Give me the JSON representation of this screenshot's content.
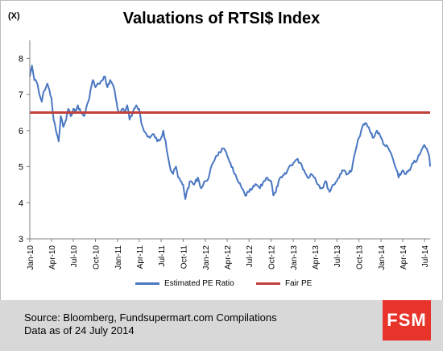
{
  "title": "Valuations of RTSI$ Index",
  "y_unit": "(X)",
  "legend": [
    {
      "label": "Estimated PE Ratio",
      "color": "#4a77c2"
    },
    {
      "label": "Fair PE",
      "color": "#c0403c"
    }
  ],
  "footer": {
    "source": "Source: Bloomberg, Fundsupermart.com Compilations",
    "date": "Data as of 24 July 2014",
    "logo": "FSM"
  },
  "chart_data": {
    "type": "line",
    "ylim": [
      3,
      8.5
    ],
    "yticks": [
      3,
      4,
      5,
      6,
      7,
      8
    ],
    "xlim": [
      "2010-01-01",
      "2014-07-24"
    ],
    "xticks": [
      "Jan-10",
      "Apr-10",
      "Jul-10",
      "Oct-10",
      "Jan-11",
      "Apr-11",
      "Jul-11",
      "Oct-11",
      "Jan-12",
      "Apr-12",
      "Jul-12",
      "Oct-12",
      "Jan-13",
      "Apr-13",
      "Jul-13",
      "Oct-13",
      "Jan-14",
      "Apr-14",
      "Jul-14"
    ],
    "series": [
      {
        "name": "Estimated PE Ratio",
        "color": "#4a77c2",
        "x": [
          "2010-01-01",
          "2010-01-10",
          "2010-01-20",
          "2010-02-01",
          "2010-02-10",
          "2010-02-20",
          "2010-03-01",
          "2010-03-15",
          "2010-04-01",
          "2010-04-10",
          "2010-04-20",
          "2010-05-01",
          "2010-05-10",
          "2010-05-20",
          "2010-06-01",
          "2010-06-10",
          "2010-06-20",
          "2010-07-01",
          "2010-07-10",
          "2010-07-20",
          "2010-08-01",
          "2010-08-15",
          "2010-09-01",
          "2010-09-10",
          "2010-09-20",
          "2010-10-01",
          "2010-10-15",
          "2010-11-01",
          "2010-11-10",
          "2010-11-20",
          "2010-12-01",
          "2010-12-10",
          "2010-12-20",
          "2011-01-01",
          "2011-01-10",
          "2011-01-20",
          "2011-02-01",
          "2011-02-10",
          "2011-02-20",
          "2011-03-01",
          "2011-03-10",
          "2011-03-20",
          "2011-04-01",
          "2011-04-10",
          "2011-04-20",
          "2011-05-01",
          "2011-05-15",
          "2011-06-01",
          "2011-06-15",
          "2011-07-01",
          "2011-07-10",
          "2011-07-20",
          "2011-08-01",
          "2011-08-10",
          "2011-08-20",
          "2011-09-01",
          "2011-09-10",
          "2011-09-20",
          "2011-10-01",
          "2011-10-10",
          "2011-10-20",
          "2011-11-01",
          "2011-11-15",
          "2011-12-01",
          "2011-12-15",
          "2012-01-01",
          "2012-01-15",
          "2012-02-01",
          "2012-02-15",
          "2012-03-01",
          "2012-03-15",
          "2012-04-01",
          "2012-04-15",
          "2012-05-01",
          "2012-05-15",
          "2012-06-01",
          "2012-06-15",
          "2012-07-01",
          "2012-07-15",
          "2012-08-01",
          "2012-08-15",
          "2012-09-01",
          "2012-09-15",
          "2012-10-01",
          "2012-10-10",
          "2012-10-20",
          "2012-11-01",
          "2012-11-15",
          "2012-12-01",
          "2012-12-15",
          "2013-01-01",
          "2013-01-15",
          "2013-02-01",
          "2013-02-15",
          "2013-03-01",
          "2013-03-15",
          "2013-04-01",
          "2013-04-15",
          "2013-05-01",
          "2013-05-15",
          "2013-06-01",
          "2013-06-15",
          "2013-07-01",
          "2013-07-15",
          "2013-08-01",
          "2013-08-15",
          "2013-09-01",
          "2013-09-15",
          "2013-10-01",
          "2013-10-15",
          "2013-11-01",
          "2013-11-15",
          "2013-12-01",
          "2013-12-15",
          "2014-01-01",
          "2014-01-15",
          "2014-02-01",
          "2014-02-15",
          "2014-03-01",
          "2014-03-15",
          "2014-04-01",
          "2014-04-15",
          "2014-05-01",
          "2014-05-15",
          "2014-06-01",
          "2014-06-15",
          "2014-07-01",
          "2014-07-10",
          "2014-07-20",
          "2014-07-24"
        ],
        "values": [
          7.5,
          7.8,
          7.4,
          7.3,
          7.0,
          6.8,
          7.1,
          7.3,
          6.9,
          6.3,
          6.0,
          5.7,
          6.4,
          6.1,
          6.3,
          6.6,
          6.4,
          6.6,
          6.5,
          6.7,
          6.5,
          6.4,
          6.8,
          7.1,
          7.4,
          7.2,
          7.3,
          7.4,
          7.5,
          7.2,
          7.4,
          7.3,
          7.1,
          6.6,
          6.5,
          6.6,
          6.5,
          6.7,
          6.3,
          6.4,
          6.6,
          6.7,
          6.6,
          6.2,
          6.0,
          5.9,
          5.8,
          5.9,
          5.7,
          5.8,
          6.0,
          5.7,
          5.2,
          4.9,
          4.8,
          5.0,
          4.7,
          4.6,
          4.5,
          4.1,
          4.4,
          4.6,
          4.5,
          4.7,
          4.4,
          4.6,
          4.7,
          5.1,
          5.3,
          5.4,
          5.5,
          5.3,
          5.1,
          4.8,
          4.6,
          4.4,
          4.2,
          4.3,
          4.4,
          4.5,
          4.4,
          4.6,
          4.7,
          4.6,
          4.2,
          4.3,
          4.6,
          4.7,
          4.8,
          5.0,
          5.1,
          5.2,
          5.1,
          4.9,
          4.7,
          4.8,
          4.7,
          4.5,
          4.4,
          4.6,
          4.3,
          4.5,
          4.6,
          4.8,
          4.9,
          4.8,
          4.9,
          5.4,
          5.8,
          6.1,
          6.2,
          6.0,
          5.8,
          6.0,
          5.8,
          5.6,
          5.5,
          5.3,
          5.0,
          4.7,
          4.9,
          4.8,
          4.9,
          5.1,
          5.2,
          5.4,
          5.6,
          5.5,
          5.3,
          5.0
        ]
      },
      {
        "name": "Fair PE",
        "color": "#c0403c",
        "x": [
          "2010-01-01",
          "2014-07-24"
        ],
        "values": [
          6.5,
          6.5
        ]
      }
    ]
  }
}
